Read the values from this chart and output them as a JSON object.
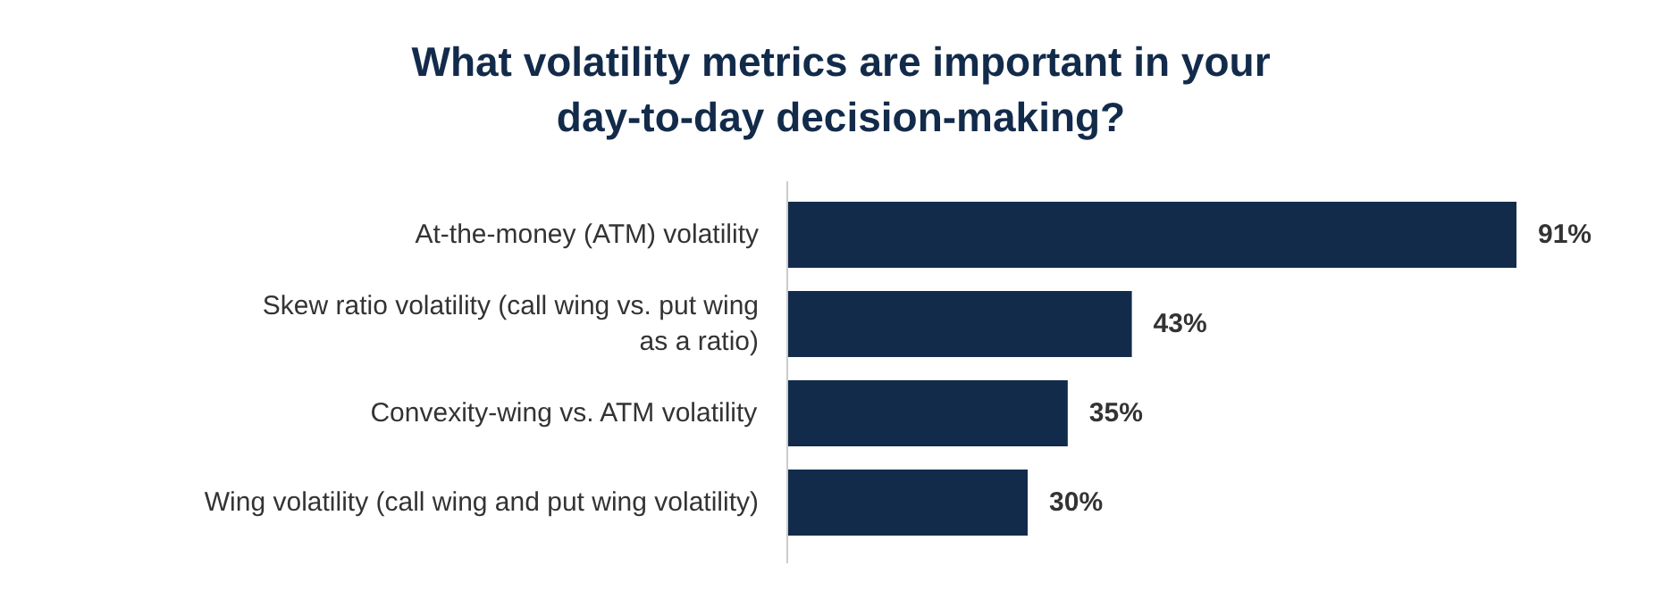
{
  "chart_data": {
    "type": "bar",
    "orientation": "horizontal",
    "title": "What volatility metrics are important in your\nday-to-day decision-making?",
    "categories": [
      "At-the-money (ATM) volatility",
      "Skew ratio volatility (call wing vs. put wing\nas a ratio)",
      "Convexity-wing vs. ATM volatility",
      "Wing volatility (call wing and put wing volatility)"
    ],
    "values": [
      91,
      43,
      35,
      30
    ],
    "value_labels": [
      "91%",
      "43%",
      "35%",
      "30%"
    ],
    "color": "#132b4a"
  }
}
